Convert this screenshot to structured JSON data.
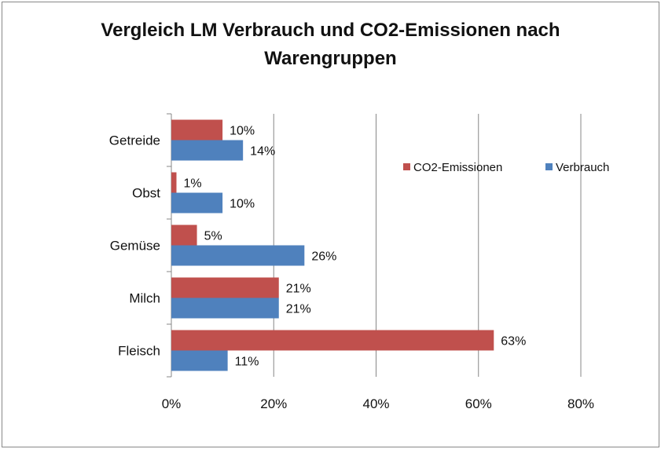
{
  "chart_data": {
    "type": "bar",
    "orientation": "horizontal",
    "title_lines": [
      "Vergleich LM Verbrauch und CO2-Emissionen nach",
      "Warengruppen"
    ],
    "categories": [
      "Getreide",
      "Obst",
      "Gemüse",
      "Milch",
      "Fleisch"
    ],
    "series": [
      {
        "name": "CO2-Emissionen",
        "color": "#C0504D",
        "values": [
          10,
          1,
          5,
          21,
          63
        ],
        "labels": [
          "10%",
          "1%",
          "5%",
          "21%",
          "63%"
        ]
      },
      {
        "name": "Verbrauch",
        "color": "#4F81BD",
        "values": [
          14,
          10,
          26,
          21,
          11
        ],
        "labels": [
          "14%",
          "10%",
          "26%",
          "21%",
          "11%"
        ]
      }
    ],
    "xlim": [
      0,
      80
    ],
    "xticks": [
      0,
      20,
      40,
      60,
      80
    ],
    "xtick_labels": [
      "0%",
      "20%",
      "40%",
      "60%",
      "80%"
    ],
    "grid": "vertical",
    "legend_position": "right"
  }
}
